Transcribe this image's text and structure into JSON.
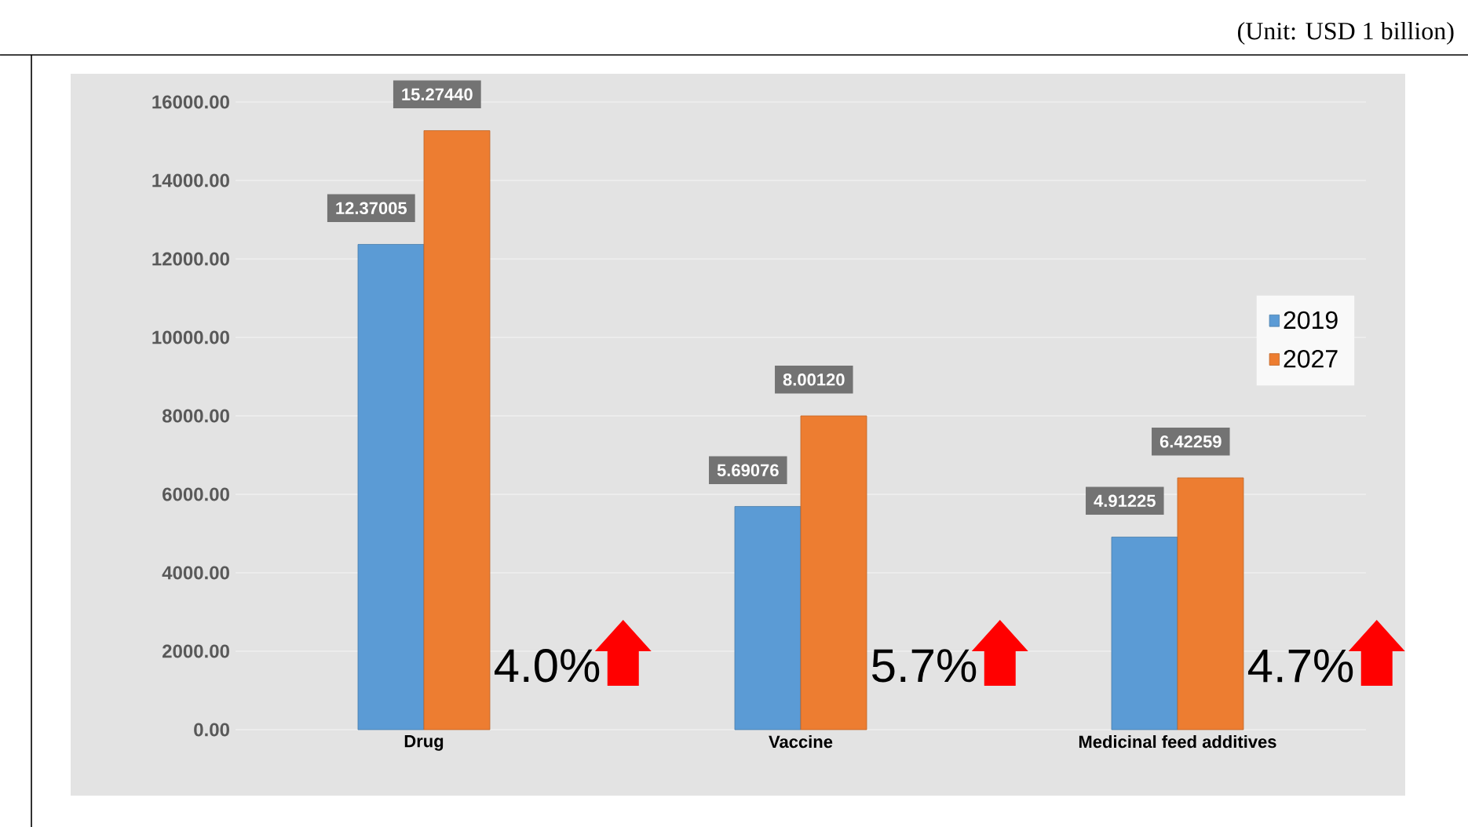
{
  "chart_data": {
    "type": "bar",
    "categories": [
      "Drug",
      "Vaccine",
      "Medicinal feed additives"
    ],
    "series": [
      {
        "name": "2019",
        "color": "#5b9bd5",
        "values": [
          12370,
          5690,
          4910
        ]
      },
      {
        "name": "2027",
        "color": "#ed7d31",
        "values": [
          15270,
          8000,
          6420
        ]
      }
    ],
    "ylim": [
      0,
      16000
    ],
    "yticks": [
      {
        "value": 0,
        "label": "0.00"
      },
      {
        "value": 2000,
        "label": "2000.00"
      },
      {
        "value": 4000,
        "label": "4000.00"
      },
      {
        "value": 6000,
        "label": "6000.00"
      },
      {
        "value": 8000,
        "label": "8000.00"
      },
      {
        "value": 10000,
        "label": "10000.00"
      },
      {
        "value": 12000,
        "label": "12000.00"
      },
      {
        "value": 14000,
        "label": "14000.00"
      },
      {
        "value": 16000,
        "label": "16000.00"
      }
    ],
    "grid": "y",
    "legend": "right",
    "annotations": [
      {
        "text": "12.37005",
        "x": "Drug",
        "y": 12370
      },
      {
        "text": "15.27440",
        "x": "Drug",
        "y": 15270
      },
      {
        "text": "5.69076",
        "x": "Vaccine",
        "y": 5690
      },
      {
        "text": "8.00120",
        "x": "Vaccine",
        "y": 8000
      },
      {
        "text": "4.91225",
        "x": "Medicinal feed additives",
        "y": 4910
      },
      {
        "text": "6.42259",
        "x": "Medicinal feed additives",
        "y": 6420
      },
      {
        "text": "4.0%",
        "x": "Drug",
        "y": 1200
      },
      {
        "text": "5.7%",
        "x": "Vaccine",
        "y": 1200
      },
      {
        "text": "4.7%",
        "x": "Medicinal feed additives",
        "y": 1200
      },
      "(Unit: USD 1 billion)"
    ]
  }
}
